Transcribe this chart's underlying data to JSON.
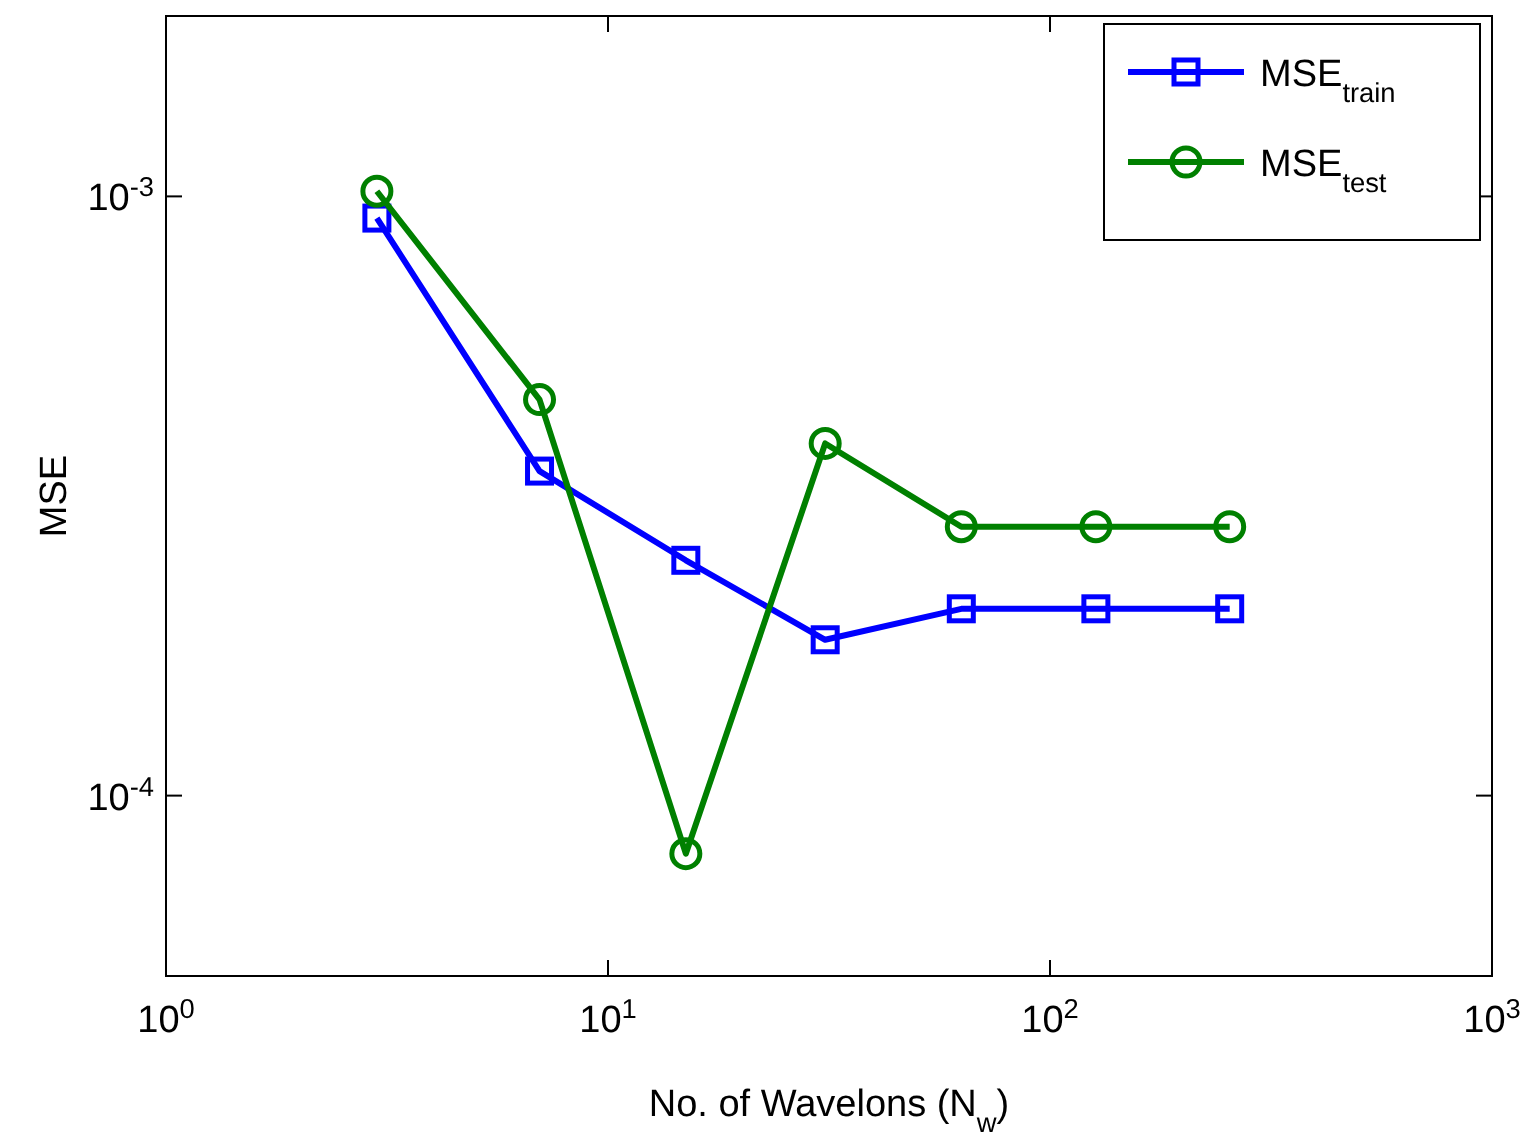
{
  "chart_data": {
    "type": "line",
    "xlabel": "No. of Wavelons (N$_{w}$)",
    "ylabel": "MSE",
    "log": "xy",
    "xlim": [
      1,
      1000
    ],
    "ylim": [
      5e-05,
      0.002
    ],
    "xticks": [
      {
        "value": 1,
        "label": "10$^{0}$"
      },
      {
        "value": 10,
        "label": "10$^{1}$"
      },
      {
        "value": 100,
        "label": "10$^{2}$"
      },
      {
        "value": 1000,
        "label": "10$^{3}$"
      }
    ],
    "yticks": [
      {
        "value": 0.0001,
        "label": "10$^{-4}$"
      },
      {
        "value": 0.001,
        "label": "10$^{-3}$"
      }
    ],
    "x": [
      3,
      7,
      15,
      31,
      63,
      127,
      255
    ],
    "grid": false,
    "legend": "top right",
    "line_style": "solid",
    "series": [
      {
        "name": "MSE$_{train}$",
        "color": "#0000ff",
        "marker": "square",
        "values": [
          0.00092,
          0.000348,
          0.000247,
          0.000182,
          0.000205,
          0.000205,
          0.000205
        ]
      },
      {
        "name": "MSE$_{test}$",
        "color": "#008000",
        "marker": "circle",
        "values": [
          0.00102,
          0.000458,
          8e-05,
          0.000387,
          0.000281,
          0.000281,
          0.000281
        ]
      }
    ]
  }
}
